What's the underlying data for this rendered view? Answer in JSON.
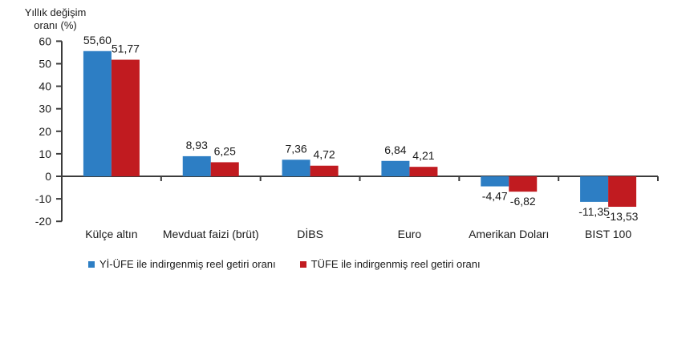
{
  "title": {
    "line1": "Yıllık değişim",
    "line2": "oranı (%)"
  },
  "legend": [
    {
      "label": "Yİ-ÜFE ile indirgenmiş reel getiri oranı",
      "color": "#2D7EC4"
    },
    {
      "label": "TÜFE ile indirgenmiş reel getiri oranı",
      "color": "#C11B20"
    }
  ],
  "chart_data": {
    "type": "bar",
    "title": "Yıllık değişim oranı (%)",
    "ylabel": "Yıllık değişim oranı (%)",
    "xlabel": "",
    "categories": [
      "Külçe altın",
      "Mevduat faizi (brüt)",
      "DİBS",
      "Euro",
      "Amerikan Doları",
      "BIST 100"
    ],
    "series": [
      {
        "name": "Yİ-ÜFE ile indirgenmiş reel getiri oranı",
        "color": "#2D7EC4",
        "values": [
          55.6,
          8.93,
          7.36,
          6.84,
          -4.47,
          -11.35
        ],
        "labels": [
          "55,60",
          "8,93",
          "7,36",
          "6,84",
          "-4,47",
          "-11,35"
        ]
      },
      {
        "name": "TÜFE ile indirgenmiş reel getiri oranı",
        "color": "#C11B20",
        "values": [
          51.77,
          6.25,
          4.72,
          4.21,
          -6.82,
          -13.53
        ],
        "labels": [
          "51,77",
          "6,25",
          "4,72",
          "4,21",
          "-6,82",
          "-13,53"
        ]
      }
    ],
    "ylim": [
      -20,
      60
    ],
    "ytick_step": 10,
    "yticks": [
      60,
      50,
      40,
      30,
      20,
      10,
      0,
      -10,
      -20
    ],
    "grid": false,
    "legend_position": "bottom",
    "axis_color": "#3c3c3c",
    "text_color": "#1a1a1a"
  }
}
